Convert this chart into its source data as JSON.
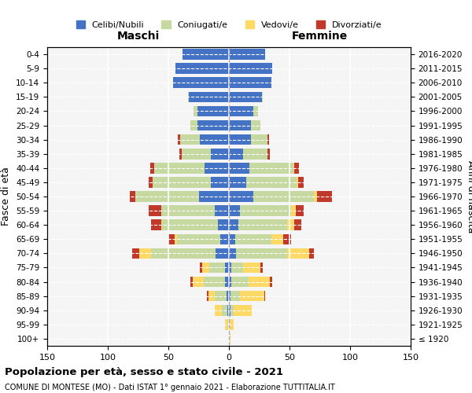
{
  "age_groups": [
    "100+",
    "95-99",
    "90-94",
    "85-89",
    "80-84",
    "75-79",
    "70-74",
    "65-69",
    "60-64",
    "55-59",
    "50-54",
    "45-49",
    "40-44",
    "35-39",
    "30-34",
    "25-29",
    "20-24",
    "15-19",
    "10-14",
    "5-9",
    "0-4"
  ],
  "birth_years": [
    "≤ 1920",
    "1921-1925",
    "1926-1930",
    "1931-1935",
    "1936-1940",
    "1941-1945",
    "1946-1950",
    "1951-1955",
    "1956-1960",
    "1961-1965",
    "1966-1970",
    "1971-1975",
    "1976-1980",
    "1981-1985",
    "1986-1990",
    "1991-1995",
    "1996-2000",
    "2001-2005",
    "2006-2010",
    "2011-2015",
    "2016-2020"
  ],
  "colors": {
    "celibe": "#4472C4",
    "coniugato": "#C6D9A0",
    "vedovo": "#FFD966",
    "divorziato": "#C0392B"
  },
  "maschi": {
    "celibe": [
      0,
      0,
      1,
      2,
      3,
      3,
      11,
      7,
      9,
      12,
      25,
      15,
      20,
      15,
      24,
      26,
      26,
      33,
      46,
      44,
      38
    ],
    "coniugato": [
      0,
      1,
      5,
      10,
      18,
      13,
      53,
      36,
      46,
      44,
      52,
      48,
      42,
      24,
      16,
      6,
      3,
      1,
      0,
      0,
      0
    ],
    "vedovo": [
      0,
      2,
      6,
      5,
      9,
      6,
      10,
      2,
      1,
      0,
      0,
      0,
      0,
      0,
      0,
      0,
      0,
      0,
      0,
      0,
      0
    ],
    "divorziato": [
      0,
      0,
      0,
      1,
      2,
      2,
      6,
      5,
      8,
      10,
      5,
      3,
      3,
      2,
      2,
      0,
      0,
      0,
      0,
      0,
      0
    ]
  },
  "femmine": {
    "nubile": [
      0,
      0,
      1,
      1,
      2,
      2,
      6,
      5,
      8,
      9,
      20,
      14,
      17,
      12,
      18,
      18,
      20,
      27,
      35,
      36,
      30
    ],
    "coniugata": [
      0,
      0,
      3,
      8,
      14,
      10,
      42,
      30,
      40,
      42,
      50,
      42,
      36,
      20,
      14,
      8,
      4,
      1,
      0,
      0,
      0
    ],
    "vedova": [
      1,
      4,
      15,
      20,
      18,
      14,
      18,
      10,
      6,
      4,
      3,
      1,
      1,
      0,
      0,
      0,
      0,
      0,
      0,
      0,
      0
    ],
    "divorziata": [
      0,
      0,
      0,
      1,
      2,
      2,
      4,
      6,
      6,
      7,
      12,
      5,
      4,
      2,
      1,
      0,
      0,
      0,
      0,
      0,
      0
    ]
  },
  "xlim": 150,
  "title": "Popolazione per età, sesso e stato civile - 2021",
  "subtitle": "COMUNE DI MONTESE (MO) - Dati ISTAT 1° gennaio 2021 - Elaborazione TUTTITALIA.IT",
  "ylabel_left": "Fasce di età",
  "ylabel_right": "Anni di nascita",
  "xlabel_maschi": "Maschi",
  "xlabel_femmine": "Femmine",
  "background_color": "#f5f5f5",
  "grid_color": "#ffffff"
}
